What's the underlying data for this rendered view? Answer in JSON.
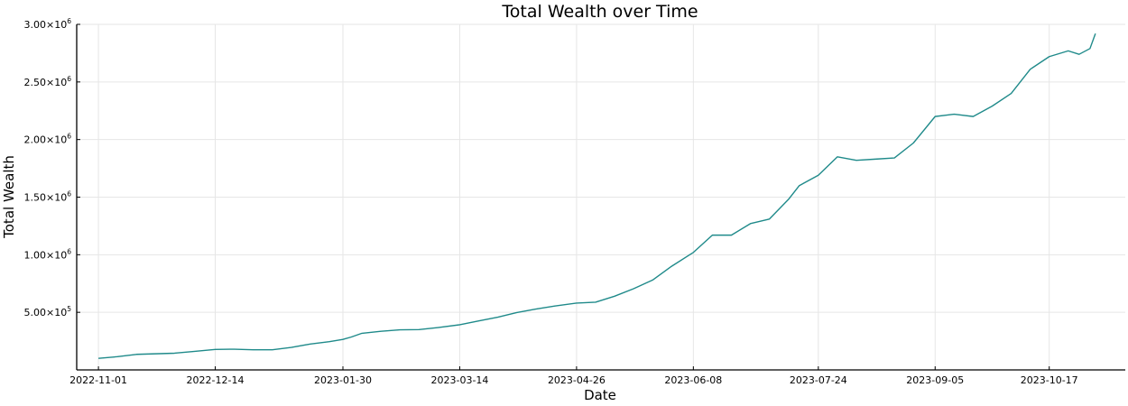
{
  "chart_data": {
    "type": "line",
    "title": "Total Wealth over Time",
    "xlabel": "Date",
    "ylabel": "Total Wealth",
    "x_type": "date",
    "xlim": [
      "2022-10-24",
      "2023-11-14"
    ],
    "ylim": [
      0,
      3000000
    ],
    "grid": true,
    "legend": "none",
    "x_ticks": [
      "2022-11-01",
      "2022-12-14",
      "2023-01-30",
      "2023-03-14",
      "2023-04-26",
      "2023-06-08",
      "2023-07-24",
      "2023-09-05",
      "2023-10-17"
    ],
    "y_ticks": [
      {
        "value": 500000,
        "mantissa": "5.00",
        "exp": "5"
      },
      {
        "value": 1000000,
        "mantissa": "1.00",
        "exp": "6"
      },
      {
        "value": 1500000,
        "mantissa": "1.50",
        "exp": "6"
      },
      {
        "value": 2000000,
        "mantissa": "2.00",
        "exp": "6"
      },
      {
        "value": 2500000,
        "mantissa": "2.50",
        "exp": "6"
      },
      {
        "value": 3000000,
        "mantissa": "3.00",
        "exp": "6"
      }
    ],
    "series": [
      {
        "color": "#1f8a8a",
        "points": [
          [
            "2022-11-01",
            100000
          ],
          [
            "2022-11-08",
            115000
          ],
          [
            "2022-11-15",
            135000
          ],
          [
            "2022-11-22",
            140000
          ],
          [
            "2022-11-29",
            145000
          ],
          [
            "2022-12-06",
            160000
          ],
          [
            "2022-12-14",
            178000
          ],
          [
            "2022-12-21",
            180000
          ],
          [
            "2022-12-28",
            175000
          ],
          [
            "2023-01-04",
            175000
          ],
          [
            "2023-01-11",
            195000
          ],
          [
            "2023-01-18",
            225000
          ],
          [
            "2023-01-25",
            245000
          ],
          [
            "2023-01-30",
            265000
          ],
          [
            "2023-02-02",
            285000
          ],
          [
            "2023-02-06",
            318000
          ],
          [
            "2023-02-13",
            335000
          ],
          [
            "2023-02-20",
            348000
          ],
          [
            "2023-02-27",
            350000
          ],
          [
            "2023-03-06",
            368000
          ],
          [
            "2023-03-14",
            392000
          ],
          [
            "2023-03-21",
            425000
          ],
          [
            "2023-03-28",
            458000
          ],
          [
            "2023-04-04",
            498000
          ],
          [
            "2023-04-11",
            528000
          ],
          [
            "2023-04-18",
            555000
          ],
          [
            "2023-04-26",
            580000
          ],
          [
            "2023-05-03",
            588000
          ],
          [
            "2023-05-10",
            640000
          ],
          [
            "2023-05-17",
            705000
          ],
          [
            "2023-05-24",
            780000
          ],
          [
            "2023-05-31",
            900000
          ],
          [
            "2023-06-08",
            1020000
          ],
          [
            "2023-06-15",
            1170000
          ],
          [
            "2023-06-22",
            1170000
          ],
          [
            "2023-06-29",
            1270000
          ],
          [
            "2023-07-06",
            1310000
          ],
          [
            "2023-07-13",
            1480000
          ],
          [
            "2023-07-17",
            1600000
          ],
          [
            "2023-07-24",
            1690000
          ],
          [
            "2023-07-31",
            1850000
          ],
          [
            "2023-08-07",
            1820000
          ],
          [
            "2023-08-14",
            1830000
          ],
          [
            "2023-08-21",
            1840000
          ],
          [
            "2023-08-28",
            1970000
          ],
          [
            "2023-09-05",
            2200000
          ],
          [
            "2023-09-12",
            2220000
          ],
          [
            "2023-09-19",
            2200000
          ],
          [
            "2023-09-26",
            2290000
          ],
          [
            "2023-10-03",
            2400000
          ],
          [
            "2023-10-10",
            2610000
          ],
          [
            "2023-10-17",
            2720000
          ],
          [
            "2023-10-24",
            2770000
          ],
          [
            "2023-10-28",
            2740000
          ],
          [
            "2023-11-01",
            2790000
          ],
          [
            "2023-11-03",
            2920000
          ]
        ]
      }
    ]
  }
}
